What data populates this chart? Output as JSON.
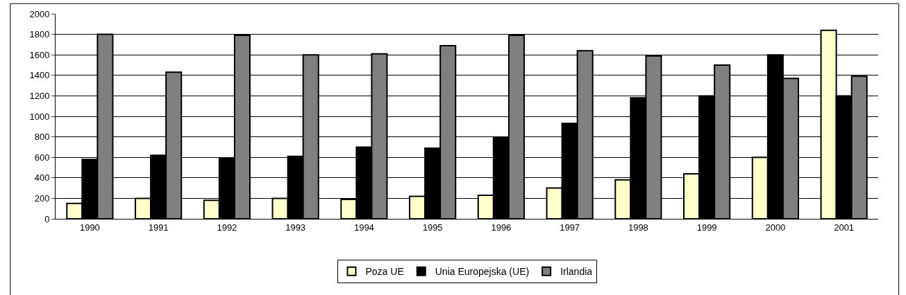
{
  "chart_data": {
    "type": "bar",
    "categories": [
      "1990",
      "1991",
      "1992",
      "1993",
      "1994",
      "1995",
      "1996",
      "1997",
      "1998",
      "1999",
      "2000",
      "2001"
    ],
    "series": [
      {
        "name": "Poza UE",
        "color": "#ffffcc",
        "values": [
          150,
          200,
          180,
          200,
          190,
          220,
          230,
          300,
          380,
          440,
          600,
          1840
        ]
      },
      {
        "name": "Unia Europejska (UE)",
        "color": "#000000",
        "values": [
          580,
          620,
          590,
          610,
          700,
          690,
          790,
          930,
          1180,
          1200,
          1600,
          1200
        ]
      },
      {
        "name": "Irlandia",
        "color": "#808080",
        "values": [
          1800,
          1430,
          1790,
          1600,
          1610,
          1690,
          1790,
          1640,
          1590,
          1500,
          1370,
          1390
        ]
      }
    ],
    "ylim": [
      0,
      2000
    ],
    "yticks": [
      0,
      200,
      400,
      600,
      800,
      1000,
      1200,
      1400,
      1600,
      1800,
      2000
    ],
    "grid": "y",
    "legend": "bottom"
  }
}
